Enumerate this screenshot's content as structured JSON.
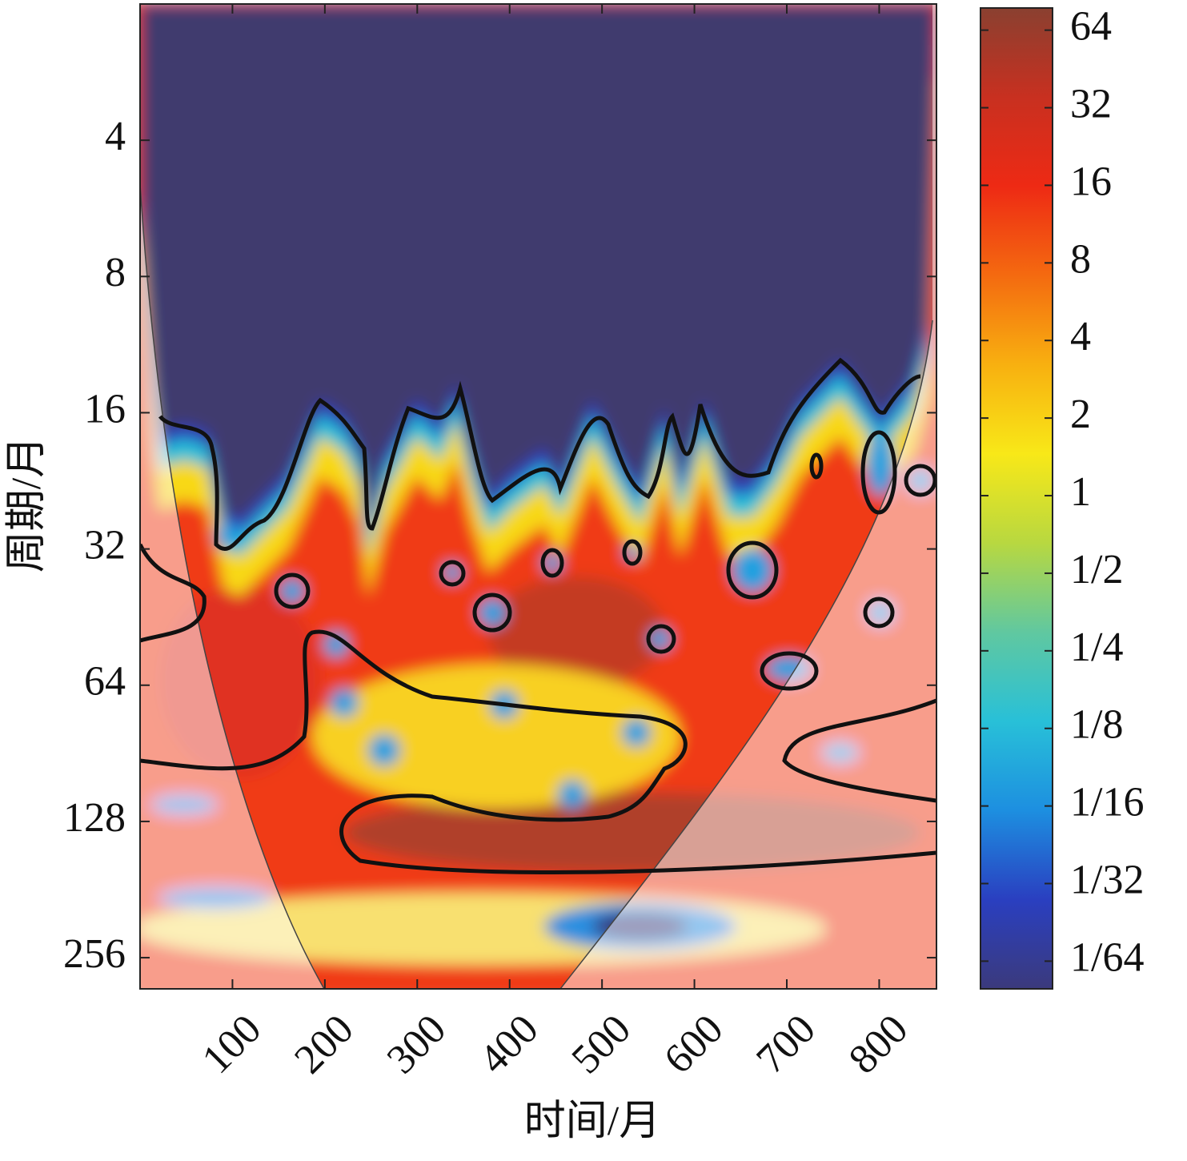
{
  "chart_data": {
    "type": "heatmap",
    "xlabel": "时间/月",
    "ylabel": "周期/月",
    "xlim": [
      0,
      862
    ],
    "xticks": [
      100,
      200,
      300,
      400,
      500,
      600,
      700,
      800
    ],
    "ylim": [
      2,
      300
    ],
    "yticks": [
      4,
      8,
      16,
      32,
      64,
      128,
      256
    ],
    "ylog": true,
    "y_inverted": true,
    "colorbar": {
      "lim": [
        0.0122,
        78
      ],
      "log": true,
      "ticks": [
        64,
        32,
        16,
        8,
        4,
        2,
        1,
        {
          "value": 0.5,
          "label": "1/2"
        },
        {
          "value": 0.25,
          "label": "1/4"
        },
        {
          "value": 0.125,
          "label": "1/8"
        },
        {
          "value": 0.0625,
          "label": "1/16"
        },
        {
          "value": 0.03125,
          "label": "1/32"
        },
        {
          "value": 0.015625,
          "label": "1/64"
        }
      ],
      "colors": [
        "#3b3a7c",
        "#2a3fc0",
        "#1d8fe0",
        "#28c0d8",
        "#60c8a0",
        "#b8d840",
        "#f8e818",
        "#f8b010",
        "#f46a10",
        "#ee2a14",
        "#c83020",
        "#8a4030"
      ]
    }
  }
}
